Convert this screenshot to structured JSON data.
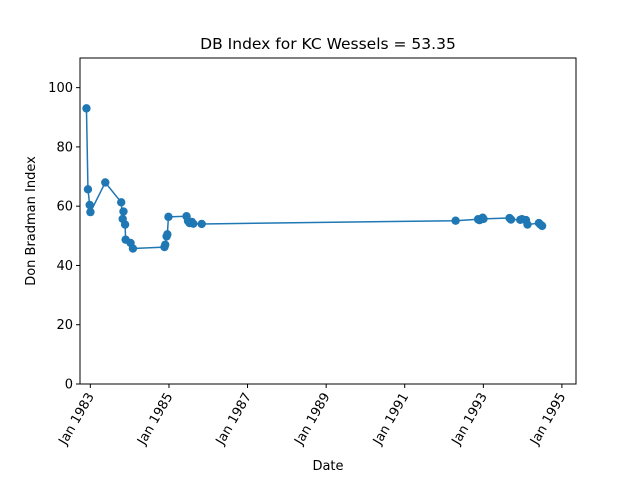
{
  "chart_data": {
    "type": "line",
    "title": "DB Index for KC Wessels = 53.35",
    "xlabel": "Date",
    "ylabel": "Don Bradman Index",
    "ylim": [
      0,
      110
    ],
    "yticks": [
      0,
      20,
      40,
      60,
      80,
      100
    ],
    "xlim": [
      "1982-09-27",
      "1995-05-12"
    ],
    "xticks": [
      {
        "date": "1983-01-01",
        "label": "Jan 1983"
      },
      {
        "date": "1985-01-01",
        "label": "Jan 1985"
      },
      {
        "date": "1987-01-01",
        "label": "Jan 1987"
      },
      {
        "date": "1989-01-01",
        "label": "Jan 1989"
      },
      {
        "date": "1991-01-01",
        "label": "Jan 1991"
      },
      {
        "date": "1993-01-01",
        "label": "Jan 1993"
      },
      {
        "date": "1995-01-01",
        "label": "Jan 1995"
      }
    ],
    "grid": false,
    "color": "#1f77b4",
    "series": [
      {
        "name": "",
        "points": [
          {
            "x": "1982-11-26",
            "y": 93
          },
          {
            "x": "1982-12-10",
            "y": 65.7
          },
          {
            "x": "1982-12-26",
            "y": 60.4
          },
          {
            "x": "1983-01-02",
            "y": 58
          },
          {
            "x": "1983-05-20",
            "y": 68
          },
          {
            "x": "1983-10-15",
            "y": 61.3
          },
          {
            "x": "1983-10-29",
            "y": 55.7
          },
          {
            "x": "1983-11-05",
            "y": 58.2
          },
          {
            "x": "1983-11-20",
            "y": 53.8
          },
          {
            "x": "1983-11-25",
            "y": 48.7
          },
          {
            "x": "1984-01-10",
            "y": 47.6
          },
          {
            "x": "1984-02-01",
            "y": 45.7
          },
          {
            "x": "1984-11-20",
            "y": 46.2
          },
          {
            "x": "1984-11-27",
            "y": 47
          },
          {
            "x": "1984-12-10",
            "y": 49.8
          },
          {
            "x": "1984-12-17",
            "y": 50.5
          },
          {
            "x": "1984-12-27",
            "y": 56.4
          },
          {
            "x": "1985-06-13",
            "y": 56.6
          },
          {
            "x": "1985-06-27",
            "y": 55
          },
          {
            "x": "1985-07-11",
            "y": 54.3
          },
          {
            "x": "1985-08-01",
            "y": 54.7
          },
          {
            "x": "1985-08-15",
            "y": 54.1
          },
          {
            "x": "1985-11-01",
            "y": 54
          },
          {
            "x": "1992-04-18",
            "y": 55.1
          },
          {
            "x": "1992-11-13",
            "y": 55.6
          },
          {
            "x": "1992-11-26",
            "y": 55.3
          },
          {
            "x": "1992-12-26",
            "y": 56.1
          },
          {
            "x": "1993-01-02",
            "y": 55.7
          },
          {
            "x": "1993-09-01",
            "y": 56
          },
          {
            "x": "1993-09-15",
            "y": 55.5
          },
          {
            "x": "1993-12-10",
            "y": 55.4
          },
          {
            "x": "1993-12-26",
            "y": 55.6
          },
          {
            "x": "1994-02-01",
            "y": 55.3
          },
          {
            "x": "1994-02-15",
            "y": 53.8
          },
          {
            "x": "1994-06-01",
            "y": 54.3
          },
          {
            "x": "1994-06-15",
            "y": 53.8
          },
          {
            "x": "1994-07-01",
            "y": 53.35
          }
        ]
      }
    ]
  }
}
